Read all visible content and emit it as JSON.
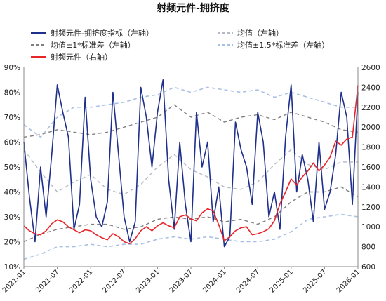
{
  "chart_data": {
    "type": "line",
    "title": "射频元件-拥挤度",
    "x_ticks": [
      "2021-01",
      "2021-07",
      "2022-01",
      "2022-07",
      "2023-01",
      "2023-07",
      "2024-01",
      "2024-07",
      "2025-01",
      "2025-07",
      "2026-01"
    ],
    "x_range": [
      "2021-01",
      "2026-01"
    ],
    "y_left": {
      "ticks": [
        "10%",
        "20%",
        "30%",
        "40%",
        "50%",
        "60%",
        "70%",
        "80%",
        "90%"
      ],
      "range": [
        10,
        90
      ],
      "unit": "%"
    },
    "y_right": {
      "ticks": [
        "600",
        "800",
        "1000",
        "1200",
        "1400",
        "1600",
        "1800",
        "2000",
        "2200",
        "2400",
        "2600"
      ],
      "range": [
        600,
        2600
      ]
    },
    "legend": [
      {
        "label": "射频元件-拥挤度指标（左轴）",
        "color": "#1f2f8c",
        "style": "solid",
        "position": "top-left"
      },
      {
        "label": "均值（左轴）",
        "color": "#b4bac4",
        "style": "dashed",
        "position": "top-right"
      },
      {
        "label": "均值±1*标准差（左轴）",
        "color": "#7f7f7f",
        "style": "dashed",
        "position": "middle-left"
      },
      {
        "label": "均值±1.5*标准差（左轴）",
        "color": "#a9c0e4",
        "style": "dashed",
        "position": "middle-right"
      },
      {
        "label": "射频元件（右轴）",
        "color": "#e8262a",
        "style": "solid",
        "position": "bottom-left"
      }
    ],
    "series": [
      {
        "name": "射频元件-拥挤度指标（左轴）",
        "axis": "left",
        "x": [
          "2021-01",
          "2021-02",
          "2021-03",
          "2021-04",
          "2021-05",
          "2021-06",
          "2021-07",
          "2021-08",
          "2021-09",
          "2021-10",
          "2021-11",
          "2021-12",
          "2022-01",
          "2022-02",
          "2022-03",
          "2022-04",
          "2022-05",
          "2022-06",
          "2022-07",
          "2022-08",
          "2022-09",
          "2022-10",
          "2022-11",
          "2022-12",
          "2023-01",
          "2023-02",
          "2023-03",
          "2023-04",
          "2023-05",
          "2023-06",
          "2023-07",
          "2023-08",
          "2023-09",
          "2023-10",
          "2023-11",
          "2023-12",
          "2024-01",
          "2024-02",
          "2024-03",
          "2024-04",
          "2024-05",
          "2024-06",
          "2024-07",
          "2024-08",
          "2024-09",
          "2024-10",
          "2024-11",
          "2024-12",
          "2025-01",
          "2025-02",
          "2025-03",
          "2025-04",
          "2025-05",
          "2025-06",
          "2025-07",
          "2025-08",
          "2025-09",
          "2025-10",
          "2025-11",
          "2025-12",
          "2026-01"
        ],
        "values": [
          60,
          38,
          20,
          50,
          30,
          55,
          83,
          72,
          62,
          25,
          35,
          78,
          45,
          30,
          26,
          36,
          80,
          55,
          30,
          20,
          28,
          82,
          70,
          50,
          72,
          85,
          45,
          25,
          60,
          35,
          20,
          72,
          50,
          60,
          28,
          42,
          18,
          22,
          68,
          57,
          50,
          35,
          72,
          60,
          30,
          40,
          25,
          62,
          83,
          40,
          55,
          45,
          28,
          60,
          33,
          40,
          55,
          80,
          70,
          35,
          80
        ]
      },
      {
        "name": "射频元件（右轴）",
        "axis": "right",
        "x": [
          "2021-01",
          "2021-02",
          "2021-03",
          "2021-04",
          "2021-05",
          "2021-06",
          "2021-07",
          "2021-08",
          "2021-09",
          "2021-10",
          "2021-11",
          "2021-12",
          "2022-01",
          "2022-02",
          "2022-03",
          "2022-04",
          "2022-05",
          "2022-06",
          "2022-07",
          "2022-08",
          "2022-09",
          "2022-10",
          "2022-11",
          "2022-12",
          "2023-01",
          "2023-02",
          "2023-03",
          "2023-04",
          "2023-05",
          "2023-06",
          "2023-07",
          "2023-08",
          "2023-09",
          "2023-10",
          "2023-11",
          "2023-12",
          "2024-01",
          "2024-02",
          "2024-03",
          "2024-04",
          "2024-05",
          "2024-06",
          "2024-07",
          "2024-08",
          "2024-09",
          "2024-10",
          "2024-11",
          "2024-12",
          "2025-01",
          "2025-02",
          "2025-03",
          "2025-04",
          "2025-05",
          "2025-06",
          "2025-07",
          "2025-08",
          "2025-09",
          "2025-10",
          "2025-11",
          "2025-12",
          "2026-01"
        ],
        "values": [
          1010,
          960,
          930,
          920,
          960,
          1030,
          1070,
          1050,
          1000,
          970,
          940,
          970,
          960,
          920,
          890,
          870,
          930,
          900,
          850,
          830,
          880,
          960,
          1000,
          960,
          1010,
          1040,
          1010,
          990,
          1100,
          1120,
          1080,
          1060,
          1140,
          1180,
          1160,
          1020,
          860,
          900,
          960,
          990,
          1000,
          920,
          930,
          950,
          980,
          1060,
          1230,
          1350,
          1480,
          1420,
          1500,
          1560,
          1640,
          1560,
          1620,
          1700,
          1860,
          1820,
          1880,
          1900,
          2420
        ]
      },
      {
        "name": "均值（左轴）",
        "axis": "left",
        "x": [
          "2021-01",
          "2021-04",
          "2021-07",
          "2021-10",
          "2022-01",
          "2022-04",
          "2022-07",
          "2022-10",
          "2023-01",
          "2023-04",
          "2023-07",
          "2023-10",
          "2024-01",
          "2024-04",
          "2024-07",
          "2024-10",
          "2025-01",
          "2025-04",
          "2025-07",
          "2025-10",
          "2026-01"
        ],
        "values": [
          57,
          48,
          40,
          44,
          47,
          41,
          39,
          43,
          50,
          55,
          49,
          46,
          42,
          41,
          44,
          51,
          57,
          51,
          49,
          52,
          52
        ]
      },
      {
        "name": "均值+1*标准差（左轴）",
        "axis": "left",
        "x": [
          "2021-01",
          "2021-04",
          "2021-07",
          "2021-10",
          "2022-01",
          "2022-04",
          "2022-07",
          "2022-10",
          "2023-01",
          "2023-04",
          "2023-07",
          "2023-10",
          "2024-01",
          "2024-04",
          "2024-07",
          "2024-10",
          "2025-01",
          "2025-04",
          "2025-07",
          "2025-10",
          "2026-01"
        ],
        "values": [
          62,
          63,
          65,
          64,
          63,
          64,
          66,
          68,
          70,
          75,
          70,
          72,
          68,
          70,
          71,
          69,
          72,
          70,
          68,
          65,
          64
        ]
      },
      {
        "name": "均值-1*标准差（左轴）",
        "axis": "left",
        "x": [
          "2021-01",
          "2021-04",
          "2021-07",
          "2021-10",
          "2022-01",
          "2022-04",
          "2022-07",
          "2022-10",
          "2023-01",
          "2023-04",
          "2023-07",
          "2023-10",
          "2024-01",
          "2024-04",
          "2024-07",
          "2024-10",
          "2025-01",
          "2025-04",
          "2025-07",
          "2025-10",
          "2026-01"
        ],
        "values": [
          20,
          23,
          25,
          26,
          27,
          27,
          25,
          26,
          29,
          30,
          29,
          30,
          28,
          29,
          27,
          30,
          36,
          40,
          40,
          42,
          38
        ]
      },
      {
        "name": "均值+1.5*标准差（左轴）",
        "axis": "left",
        "x": [
          "2021-01",
          "2021-04",
          "2021-07",
          "2021-10",
          "2022-01",
          "2022-04",
          "2022-07",
          "2022-10",
          "2023-01",
          "2023-04",
          "2023-07",
          "2023-10",
          "2024-01",
          "2024-04",
          "2024-07",
          "2024-10",
          "2025-01",
          "2025-04",
          "2025-07",
          "2025-10",
          "2026-01"
        ],
        "values": [
          67,
          62,
          70,
          74,
          74,
          75,
          76,
          78,
          79,
          82,
          80,
          82,
          81,
          80,
          81,
          78,
          80,
          78,
          76,
          74,
          74
        ]
      },
      {
        "name": "均值-1.5*标准差（左轴）",
        "axis": "left",
        "x": [
          "2021-01",
          "2021-04",
          "2021-07",
          "2021-10",
          "2022-01",
          "2022-04",
          "2022-07",
          "2022-10",
          "2023-01",
          "2023-04",
          "2023-07",
          "2023-10",
          "2024-01",
          "2024-04",
          "2024-07",
          "2024-10",
          "2025-01",
          "2025-04",
          "2025-07",
          "2025-10",
          "2026-01"
        ],
        "values": [
          13,
          15,
          18,
          18,
          19,
          18,
          19,
          19,
          21,
          22,
          21,
          22,
          21,
          20,
          20,
          21,
          24,
          29,
          30,
          31,
          30
        ]
      }
    ]
  }
}
